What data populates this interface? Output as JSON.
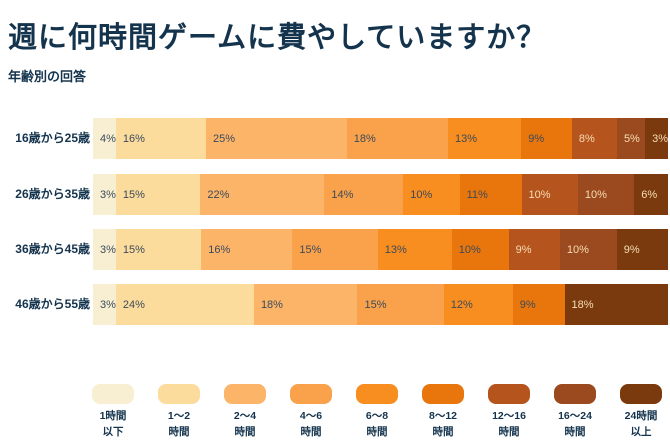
{
  "title": "週に何時間ゲームに費やしていますか？",
  "subtitle": "年齢別の回答",
  "colors": {
    "background": "#ffffff",
    "heading_text": "#14334d",
    "segment_label_dark": "#3c4a59",
    "segment_label_light": "#f7ddb4"
  },
  "chart_data": {
    "type": "bar",
    "variant": "horizontal-stacked-percentage",
    "title": "週に何時間ゲームに費やしていますか？",
    "subtitle": "年齢別の回答",
    "value_suffix": "%",
    "legend_position": "bottom",
    "grid": false,
    "categories": [
      "16歳から25歳",
      "26歳から35歳",
      "36歳から45歳",
      "46歳から55歳"
    ],
    "series": [
      {
        "name": "1時間以下",
        "legend_lines": [
          "1時間",
          "以下"
        ],
        "color": "#f8efd3",
        "label_tone": "dark",
        "values": [
          4,
          3,
          3,
          3
        ]
      },
      {
        "name": "1〜2時間",
        "legend_lines": [
          "1〜2",
          "時間"
        ],
        "color": "#fbdc9d",
        "label_tone": "dark",
        "values": [
          16,
          15,
          15,
          24
        ]
      },
      {
        "name": "2〜4時間",
        "legend_lines": [
          "2〜4",
          "時間"
        ],
        "color": "#fcb469",
        "label_tone": "dark",
        "values": [
          25,
          22,
          16,
          18
        ]
      },
      {
        "name": "4〜6時間",
        "legend_lines": [
          "4〜6",
          "時間"
        ],
        "color": "#f9a24b",
        "label_tone": "dark",
        "values": [
          18,
          14,
          15,
          15
        ]
      },
      {
        "name": "6〜8時間",
        "legend_lines": [
          "6〜8",
          "時間"
        ],
        "color": "#f88d20",
        "label_tone": "dark",
        "values": [
          13,
          10,
          13,
          12
        ]
      },
      {
        "name": "8〜12時間",
        "legend_lines": [
          "8〜12",
          "時間"
        ],
        "color": "#e8760d",
        "label_tone": "dark",
        "values": [
          9,
          11,
          10,
          9
        ]
      },
      {
        "name": "12〜16時間",
        "legend_lines": [
          "12〜16",
          "時間"
        ],
        "color": "#b5551d",
        "label_tone": "light",
        "values": [
          8,
          10,
          9,
          0
        ]
      },
      {
        "name": "16〜24時間",
        "legend_lines": [
          "16〜24",
          "時間"
        ],
        "color": "#9a4a1e",
        "label_tone": "light",
        "values": [
          5,
          10,
          10,
          0
        ]
      },
      {
        "name": "24時間以上",
        "legend_lines": [
          "24時間",
          "以上"
        ],
        "color": "#7b3a0e",
        "label_tone": "light",
        "values": [
          3,
          6,
          9,
          18
        ]
      }
    ]
  }
}
